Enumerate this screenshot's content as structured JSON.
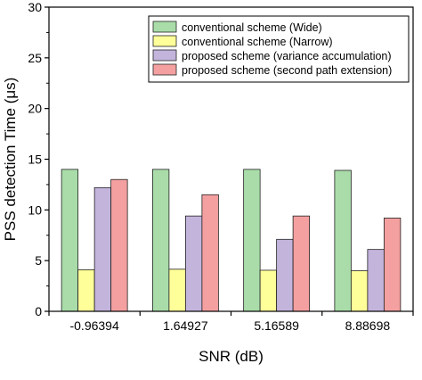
{
  "chart_data": {
    "type": "bar",
    "xlabel": "SNR (dB)",
    "ylabel": "PSS detection Time (μs)",
    "categories": [
      "-0.96394",
      "1.64927",
      "5.16589",
      "8.88698"
    ],
    "ylim": [
      0,
      30
    ],
    "yticks": [
      0,
      5,
      10,
      15,
      20,
      25,
      30
    ],
    "grid": false,
    "legend_position": "top-right",
    "series": [
      {
        "name": "conventional scheme (Wide)",
        "color": "#a9dca9",
        "values": [
          14.0,
          14.0,
          14.0,
          13.9
        ]
      },
      {
        "name": "conventional scheme (Narrow)",
        "color": "#ffff99",
        "values": [
          4.1,
          4.15,
          4.05,
          4.0
        ]
      },
      {
        "name": "proposed scheme (variance accumulation)",
        "color": "#c3b4dc",
        "values": [
          12.2,
          9.4,
          7.1,
          6.1
        ]
      },
      {
        "name": "proposed scheme (second path extension)",
        "color": "#f4a0a0",
        "values": [
          13.0,
          11.5,
          9.4,
          9.2
        ]
      }
    ]
  }
}
